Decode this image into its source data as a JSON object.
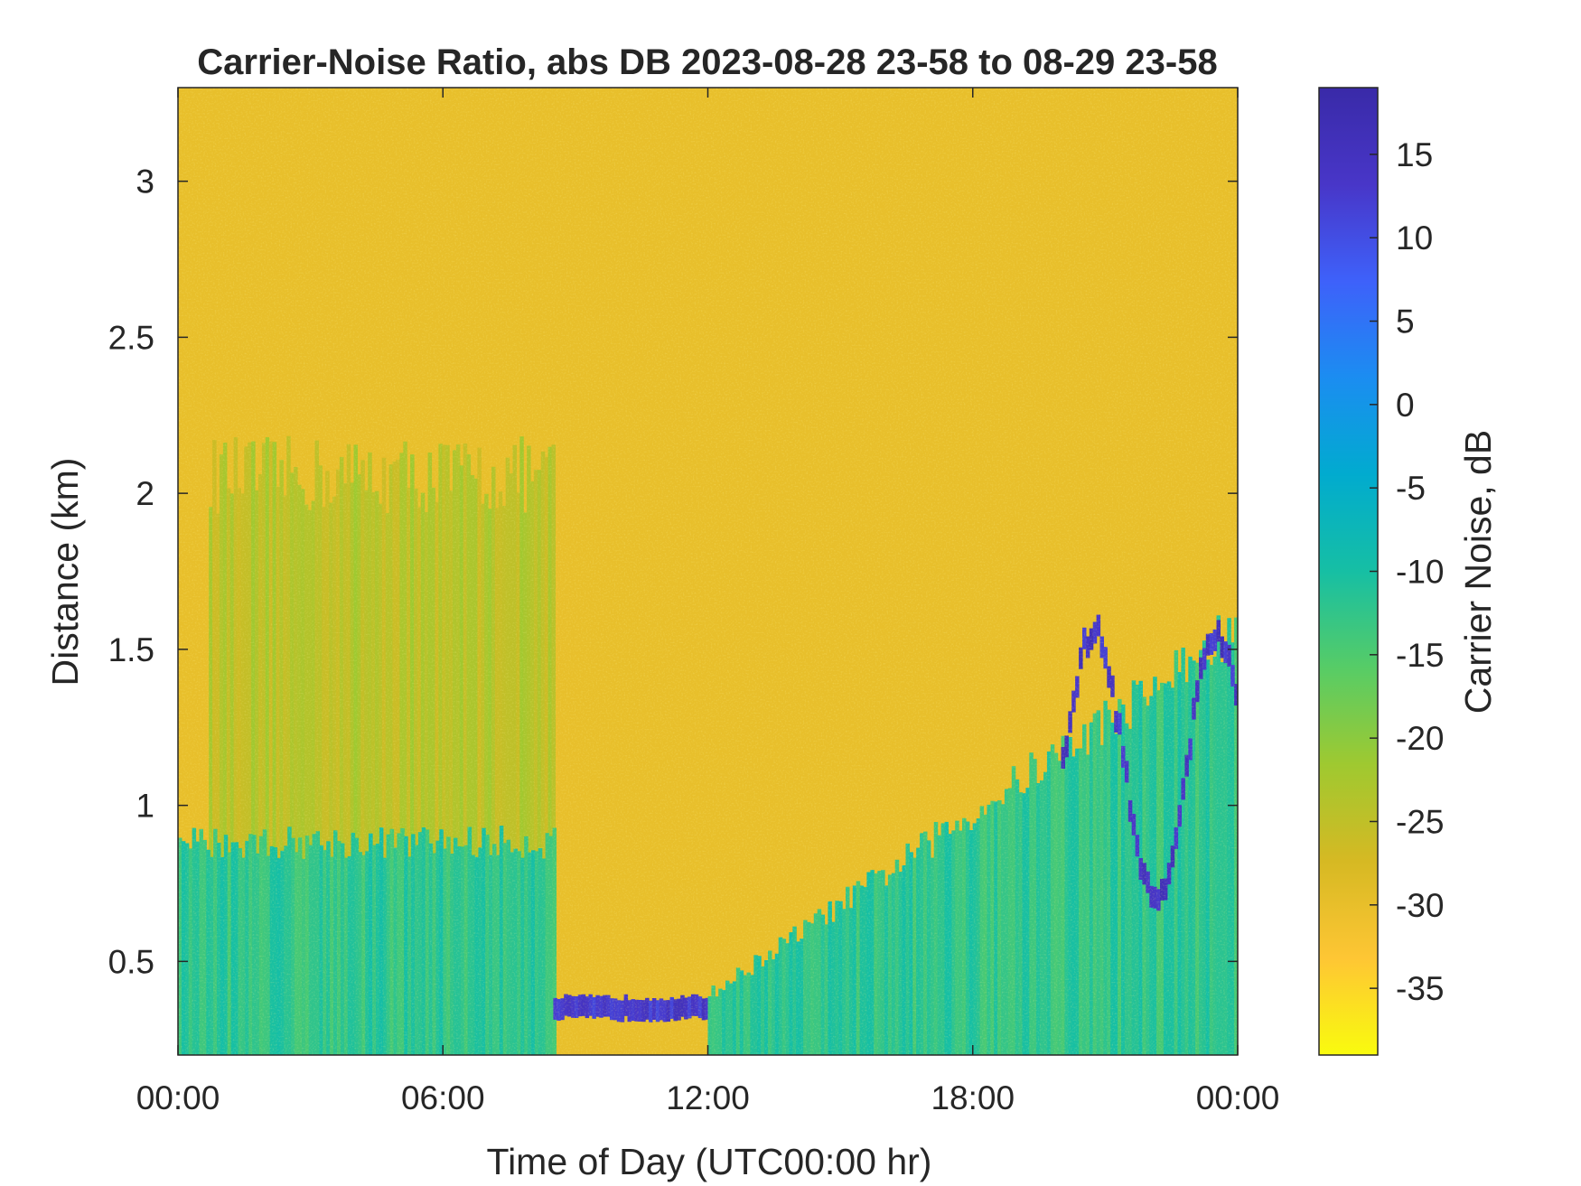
{
  "chart_data": {
    "type": "heatmap",
    "title": "Carrier-Noise Ratio, abs DB 2023-08-28 23-58 to 08-29 23-58",
    "xlabel": "Time of Day (UTC00:00 hr)",
    "ylabel": "Distance (km)",
    "x_range_hours": [
      0,
      24
    ],
    "x_ticks": [
      {
        "value": 0,
        "label": "00:00"
      },
      {
        "value": 6,
        "label": "06:00"
      },
      {
        "value": 12,
        "label": "12:00"
      },
      {
        "value": 18,
        "label": "18:00"
      },
      {
        "value": 24,
        "label": "00:00"
      }
    ],
    "y_range_km": [
      0.2,
      3.3
    ],
    "y_ticks": [
      {
        "value": 0.5,
        "label": "0.5"
      },
      {
        "value": 1,
        "label": "1"
      },
      {
        "value": 1.5,
        "label": "1.5"
      },
      {
        "value": 2,
        "label": "2"
      },
      {
        "value": 2.5,
        "label": "2.5"
      },
      {
        "value": 3,
        "label": "3"
      }
    ],
    "colorbar": {
      "label": "Carrier Noise, dB",
      "range": [
        -39,
        19
      ],
      "ticks": [
        {
          "value": 15,
          "label": "15"
        },
        {
          "value": 10,
          "label": "10"
        },
        {
          "value": 5,
          "label": "5"
        },
        {
          "value": 0,
          "label": "0"
        },
        {
          "value": -5,
          "label": "-5"
        },
        {
          "value": -10,
          "label": "-10"
        },
        {
          "value": -15,
          "label": "-15"
        },
        {
          "value": -20,
          "label": "-20"
        },
        {
          "value": -25,
          "label": "-25"
        },
        {
          "value": -30,
          "label": "-30"
        },
        {
          "value": -35,
          "label": "-35"
        }
      ],
      "colormap": "parula",
      "colors": [
        "#f9fb0e",
        "#fec634",
        "#d6b923",
        "#9fc930",
        "#57cc66",
        "#16bfa4",
        "#01abcf",
        "#1b8df1",
        "#3e61fa",
        "#4836c8",
        "#392aa8"
      ]
    },
    "background_value_db": -30,
    "features": [
      {
        "name": "boundary layer before 08:30",
        "t_start": 0.7,
        "t_end": 8.5,
        "top_km": 2.1,
        "value_db": -24
      },
      {
        "name": "dense low layer before 08:30",
        "t_start": 0,
        "t_end": 8.5,
        "top_km": 0.9,
        "value_db": -12
      },
      {
        "name": "strong return band",
        "t_start": 8.5,
        "t_end": 12.2,
        "distance_km": 0.35,
        "value_db": 13
      },
      {
        "name": "afternoon growing layer",
        "t_start": 12,
        "t_end": 24,
        "top_km": [
          0.4,
          1.6
        ],
        "value_db": -12
      },
      {
        "name": "cloud-top strong returns",
        "t_start": 20.0,
        "t_end": 24.0,
        "distance_km": [
          0.7,
          1.55
        ],
        "value_db": 14
      }
    ]
  }
}
